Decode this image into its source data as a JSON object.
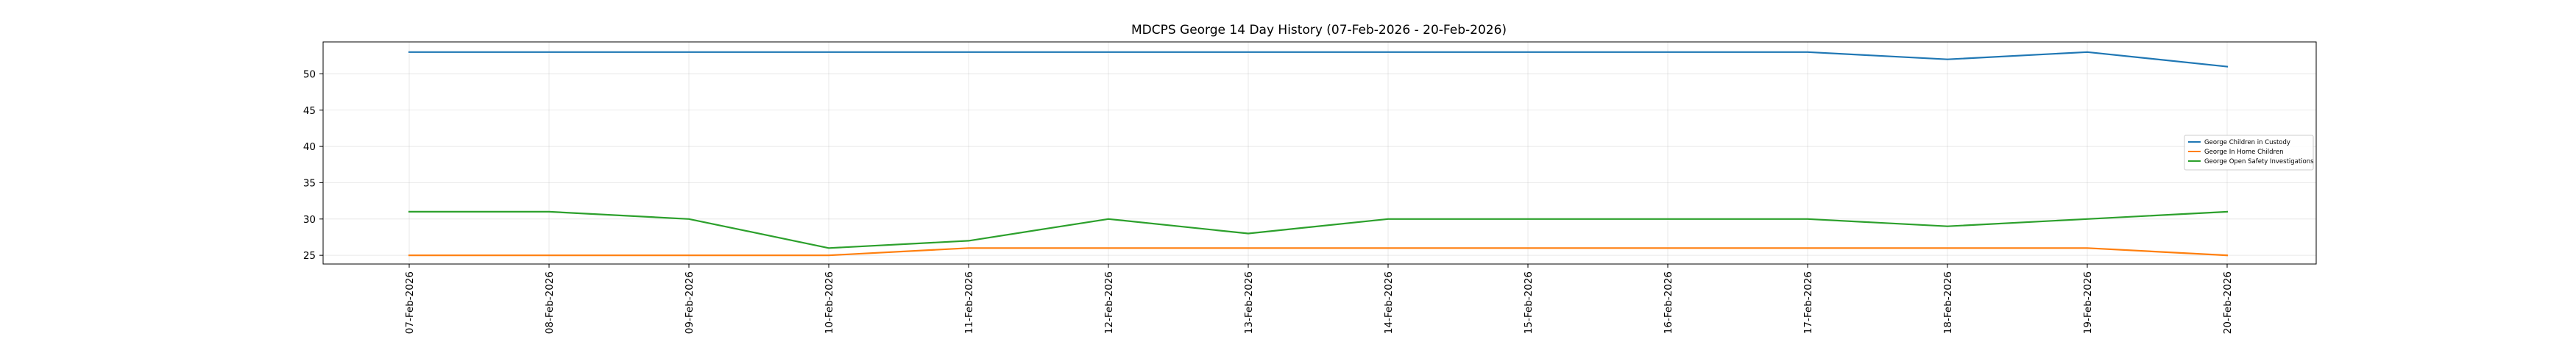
{
  "chart_data": {
    "type": "line",
    "title": "MDCPS George 14 Day History (07-Feb-2026 - 20-Feb-2026)",
    "xlabel": "",
    "ylabel": "",
    "categories": [
      "07-Feb-2026",
      "08-Feb-2026",
      "09-Feb-2026",
      "10-Feb-2026",
      "11-Feb-2026",
      "12-Feb-2026",
      "13-Feb-2026",
      "14-Feb-2026",
      "15-Feb-2026",
      "16-Feb-2026",
      "17-Feb-2026",
      "18-Feb-2026",
      "19-Feb-2026",
      "20-Feb-2026"
    ],
    "yticks": [
      25,
      30,
      35,
      40,
      45,
      50
    ],
    "ylim": [
      23.8,
      54.4
    ],
    "grid": true,
    "legend_position": "center-right",
    "series": [
      {
        "name": "George Children in Custody",
        "color": "#1f77b4",
        "values": [
          53,
          53,
          53,
          53,
          53,
          53,
          53,
          53,
          53,
          53,
          53,
          52,
          53,
          51
        ]
      },
      {
        "name": "George In Home Children",
        "color": "#ff7f0e",
        "values": [
          25,
          25,
          25,
          25,
          26,
          26,
          26,
          26,
          26,
          26,
          26,
          26,
          26,
          25
        ]
      },
      {
        "name": "George Open Safety Investigations",
        "color": "#2ca02c",
        "values": [
          31,
          31,
          30,
          26,
          27,
          30,
          28,
          30,
          30,
          30,
          30,
          29,
          30,
          31
        ]
      }
    ]
  }
}
